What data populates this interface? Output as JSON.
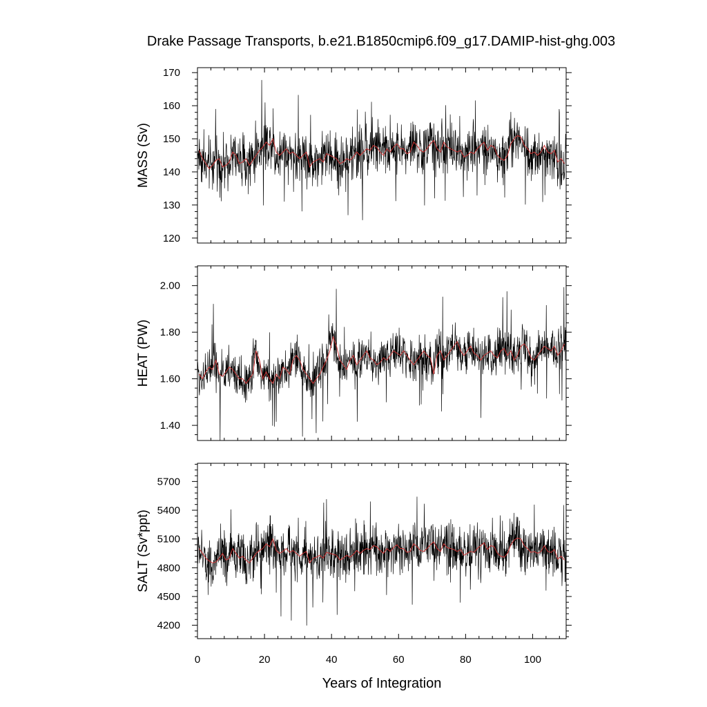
{
  "chart_data": {
    "type": "line",
    "title": "Drake Passage Transports, b.e21.B1850cmip6.f09_g17.DAMIP-hist-ghg.003",
    "xlabel": "Years of Integration",
    "xlim": [
      0,
      110
    ],
    "xticks": [
      0,
      20,
      40,
      60,
      80,
      100
    ],
    "xtick_labels": [
      "0",
      "20",
      "40",
      "60",
      "80",
      "100"
    ],
    "grid": false,
    "line_colors": {
      "monthly": "#000000",
      "annual": "#cc3333"
    },
    "panels": [
      {
        "ylabel": "MASS (Sv)",
        "ylim": [
          118.5,
          171.5
        ],
        "yticks": [
          120,
          130,
          140,
          150,
          160,
          170
        ],
        "ytick_labels": [
          "120",
          "130",
          "140",
          "150",
          "160",
          "170"
        ],
        "annual_mean": [
          146.5,
          144.0,
          142.5,
          141.0,
          142.0,
          143.5,
          144.0,
          141.5,
          142.0,
          143.0,
          146.0,
          145.0,
          142.5,
          143.0,
          144.0,
          142.0,
          143.5,
          145.0,
          146.5,
          147.5,
          149.0,
          148.0,
          150.0,
          146.0,
          145.0,
          146.0,
          147.0,
          145.5,
          146.0,
          145.0,
          144.0,
          145.0,
          146.0,
          141.5,
          143.0,
          143.5,
          144.0,
          143.0,
          145.5,
          145.0,
          144.5,
          144.0,
          142.5,
          143.0,
          144.0,
          143.5,
          144.5,
          146.0,
          145.0,
          146.0,
          147.0,
          146.5,
          148.0,
          147.5,
          146.0,
          145.0,
          147.0,
          146.0,
          147.5,
          148.5,
          147.0,
          147.0,
          145.5,
          146.0,
          149.0,
          148.0,
          146.5,
          146.0,
          147.0,
          148.5,
          149.5,
          147.0,
          146.0,
          149.0,
          147.5,
          147.0,
          146.5,
          146.0,
          146.5,
          144.5,
          145.0,
          146.0,
          145.5,
          147.0,
          148.0,
          149.0,
          146.5,
          148.0,
          147.5,
          145.0,
          144.0,
          143.5,
          145.0,
          148.5,
          150.0,
          151.0,
          150.5,
          148.0,
          147.0,
          145.5,
          146.0,
          145.0,
          146.0,
          148.0,
          146.0,
          145.5,
          146.5,
          143.0,
          144.0,
          142.5
        ],
        "noise_amplitude": 6.5,
        "spike_amplitude": 16
      },
      {
        "ylabel": "HEAT (PW)",
        "ylim": [
          1.335,
          2.085
        ],
        "yticks": [
          1.4,
          1.6,
          1.8,
          2.0
        ],
        "ytick_labels": [
          "1.40",
          "1.60",
          "1.80",
          "2.00"
        ],
        "annual_mean": [
          1.62,
          1.6,
          1.63,
          1.65,
          1.64,
          1.68,
          1.62,
          1.61,
          1.63,
          1.65,
          1.64,
          1.62,
          1.6,
          1.6,
          1.58,
          1.6,
          1.62,
          1.72,
          1.68,
          1.6,
          1.63,
          1.6,
          1.58,
          1.62,
          1.6,
          1.65,
          1.64,
          1.62,
          1.68,
          1.7,
          1.68,
          1.64,
          1.62,
          1.6,
          1.58,
          1.6,
          1.62,
          1.65,
          1.68,
          1.72,
          1.78,
          1.74,
          1.68,
          1.66,
          1.64,
          1.68,
          1.7,
          1.66,
          1.68,
          1.7,
          1.72,
          1.69,
          1.68,
          1.66,
          1.67,
          1.69,
          1.68,
          1.7,
          1.72,
          1.71,
          1.7,
          1.72,
          1.7,
          1.68,
          1.66,
          1.68,
          1.7,
          1.72,
          1.7,
          1.69,
          1.62,
          1.7,
          1.72,
          1.68,
          1.7,
          1.72,
          1.74,
          1.76,
          1.72,
          1.7,
          1.72,
          1.74,
          1.71,
          1.7,
          1.68,
          1.7,
          1.71,
          1.72,
          1.7,
          1.69,
          1.72,
          1.73,
          1.7,
          1.72,
          1.68,
          1.7,
          1.74,
          1.75,
          1.73,
          1.69,
          1.68,
          1.7,
          1.72,
          1.74,
          1.73,
          1.72,
          1.74,
          1.7,
          1.72,
          1.75
        ],
        "noise_amplitude": 0.075,
        "spike_amplitude": 0.24
      },
      {
        "ylabel": "SALT (Sv*ppt)",
        "ylim": [
          4060,
          5890
        ],
        "yticks": [
          4200,
          4500,
          4800,
          5100,
          5400,
          5700
        ],
        "ytick_labels": [
          "4200",
          "4500",
          "4800",
          "5100",
          "5400",
          "5700"
        ],
        "annual_mean": [
          5000,
          4950,
          4900,
          4870,
          4850,
          4860,
          4900,
          4950,
          4880,
          4900,
          5000,
          4950,
          4900,
          4920,
          4880,
          4850,
          4900,
          4950,
          4980,
          5000,
          5050,
          5020,
          5100,
          4980,
          4950,
          4970,
          5000,
          4960,
          4980,
          4950,
          4920,
          4950,
          4970,
          4850,
          4900,
          4910,
          4930,
          4900,
          4960,
          4950,
          4940,
          4930,
          4880,
          4900,
          4930,
          4910,
          4940,
          4980,
          4950,
          4980,
          5000,
          4990,
          5030,
          5020,
          4980,
          4950,
          5000,
          4970,
          5010,
          5040,
          5000,
          5000,
          4960,
          4970,
          5050,
          5020,
          4980,
          4970,
          5000,
          5040,
          5070,
          5000,
          4970,
          5050,
          5010,
          5000,
          4990,
          4970,
          4990,
          4930,
          4950,
          4970,
          4960,
          5000,
          5030,
          5060,
          4990,
          5030,
          5020,
          4950,
          4920,
          4910,
          4950,
          5040,
          5090,
          5110,
          5100,
          5030,
          5000,
          4960,
          4970,
          4950,
          4970,
          5030,
          4970,
          4960,
          4990,
          4890,
          4920,
          4880
        ],
        "noise_amplitude": 220,
        "spike_amplitude": 560
      }
    ]
  }
}
